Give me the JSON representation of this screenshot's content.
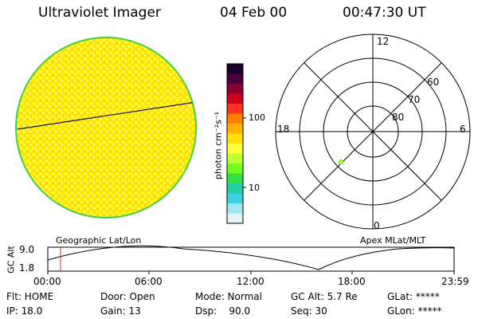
{
  "header": {
    "title": "Ultraviolet Imager",
    "date": "04 Feb 00",
    "time": "00:47:30 UT"
  },
  "colorbar": {
    "unit_label": "photon cm⁻²s⁻¹",
    "tick_high": "100",
    "tick_low": "10",
    "colors": [
      "#1a0030",
      "#4a0040",
      "#8c0030",
      "#cc0020",
      "#ff3020",
      "#ff8000",
      "#ffb000",
      "#ffe000",
      "#ffff40",
      "#c0ff30",
      "#70ff20",
      "#30e040",
      "#20d0a0",
      "#40d0e0",
      "#a0e8f0",
      "#e0f4f8"
    ]
  },
  "disk": {
    "fill_color": "#ffea00",
    "speckle_color": "#ffff80",
    "rim_color": "#40d040"
  },
  "polar": {
    "labels": {
      "top": "12",
      "bottom": "0",
      "left": "18",
      "right": "6"
    },
    "ring_labels": [
      "60",
      "70",
      "80"
    ],
    "marker_color": "#a0ff30"
  },
  "labels": {
    "left_coord": "Geographic Lat/Lon",
    "right_coord": "Apex MLat/MLT"
  },
  "alt_plot": {
    "ylabel": "GC Alt",
    "ytick_top": "9.0",
    "ytick_bottom": "1.8",
    "xticks": [
      "00:00",
      "06:00",
      "12:00",
      "18:00",
      "23:59"
    ],
    "current_marker_color": "#c03020"
  },
  "info": {
    "flt": "Flt: HOME",
    "ip": "IP: 18.0",
    "door": "Door: Open",
    "gain": "Gain: 13",
    "mode": "Mode: Normal",
    "dsp": "Dsp:    90.0",
    "gcalt": "GC Alt: 5.7 Re",
    "seq": "Seq: 30",
    "glat": "GLat: *****",
    "glon": "GLon: *****"
  }
}
